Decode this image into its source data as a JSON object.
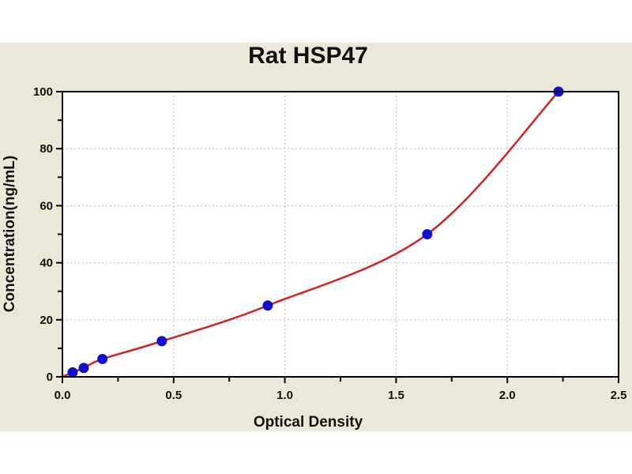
{
  "chart_data": {
    "type": "scatter",
    "title": "Rat HSP47",
    "xlabel": "Optical Density",
    "ylabel": "Concentration(ng/mL)",
    "xlim": [
      0,
      2.5
    ],
    "ylim": [
      0,
      100
    ],
    "xticks": [
      "0.0",
      "0.5",
      "1.0",
      "1.5",
      "2.0",
      "2.5"
    ],
    "yticks": [
      "0",
      "20",
      "40",
      "60",
      "80",
      "100"
    ],
    "grid": true,
    "points": [
      {
        "x": 0.046,
        "y": 1.56
      },
      {
        "x": 0.096,
        "y": 3.12
      },
      {
        "x": 0.18,
        "y": 6.25
      },
      {
        "x": 0.447,
        "y": 12.5
      },
      {
        "x": 0.923,
        "y": 25
      },
      {
        "x": 1.64,
        "y": 50
      },
      {
        "x": 2.23,
        "y": 100
      }
    ],
    "fit_curve": true,
    "colors": {
      "points": "#1010d0",
      "curve": "#d42020",
      "background": "#ebe8da"
    }
  }
}
